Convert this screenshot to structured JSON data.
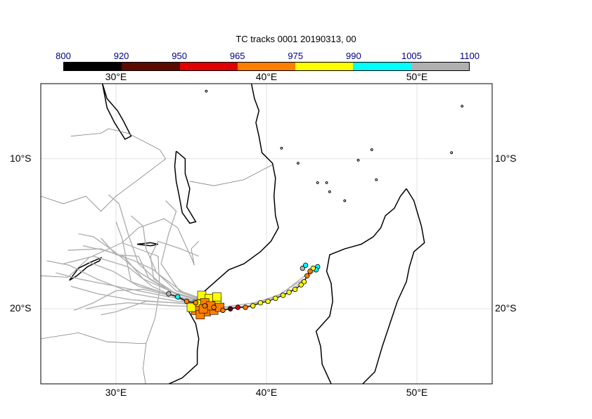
{
  "title": "TC tracks  0001 20190313, 00",
  "colorbar": {
    "labels": [
      "800",
      "920",
      "950",
      "965",
      "975",
      "990",
      "1005",
      "1100"
    ],
    "colors": [
      "#000000",
      "#5a0a00",
      "#e00000",
      "#ff7f00",
      "#ffff00",
      "#00ffff",
      "#b0b0b0"
    ]
  },
  "axes": {
    "lon_labels": [
      "30°E",
      "40°E",
      "50°E"
    ],
    "lat_labels": [
      "10°S",
      "20°S"
    ],
    "lon_range": [
      25,
      55
    ],
    "lat_range": [
      -25,
      -5
    ]
  },
  "colors": {
    "land_border": "#000000",
    "country_border": "#808080",
    "ensemble_track": "#b0b0b0",
    "grid": "#d9d9d9"
  },
  "track": {
    "points": [
      [
        43.3,
        -17.4,
        990
      ],
      [
        43.1,
        -17.3,
        975
      ],
      [
        42.9,
        -17.5,
        965
      ],
      [
        42.7,
        -17.8,
        965
      ],
      [
        42.5,
        -18.2,
        975
      ],
      [
        42.3,
        -18.4,
        975
      ],
      [
        41.9,
        -18.7,
        975
      ],
      [
        41.5,
        -18.9,
        975
      ],
      [
        41.1,
        -19.1,
        975
      ],
      [
        40.6,
        -19.3,
        975
      ],
      [
        40.1,
        -19.5,
        975
      ],
      [
        39.6,
        -19.6,
        975
      ],
      [
        39.1,
        -19.8,
        975
      ],
      [
        38.6,
        -19.9,
        965
      ],
      [
        38.1,
        -19.9,
        950
      ],
      [
        37.6,
        -20.0,
        920
      ],
      [
        37.1,
        -20.1,
        965
      ],
      [
        36.5,
        -19.9,
        965
      ],
      [
        35.9,
        -19.8,
        965
      ],
      [
        35.3,
        -19.6,
        965
      ],
      [
        34.7,
        -19.5,
        965
      ],
      [
        34.1,
        -19.2,
        990
      ],
      [
        33.5,
        -19.0,
        1005
      ]
    ],
    "extra_points": [
      [
        43.4,
        -17.2,
        990
      ],
      [
        42.4,
        -17.3,
        1005
      ],
      [
        42.6,
        -17.1,
        990
      ]
    ]
  },
  "landfall_squares": {
    "points": [
      [
        35.7,
        -19.1,
        975
      ],
      [
        36.2,
        -19.3,
        975
      ],
      [
        36.7,
        -19.5,
        975
      ],
      [
        35.4,
        -19.7,
        975
      ],
      [
        36.0,
        -20.2,
        965
      ],
      [
        36.5,
        -20.1,
        965
      ],
      [
        35.9,
        -19.6,
        965
      ],
      [
        35.3,
        -20.1,
        965
      ],
      [
        36.9,
        -19.9,
        965
      ],
      [
        35.0,
        -19.9,
        975
      ],
      [
        36.3,
        -19.8,
        965
      ],
      [
        35.6,
        -20.4,
        965
      ],
      [
        36.7,
        -19.2,
        975
      ],
      [
        35.8,
        -20.0,
        965
      ]
    ]
  }
}
